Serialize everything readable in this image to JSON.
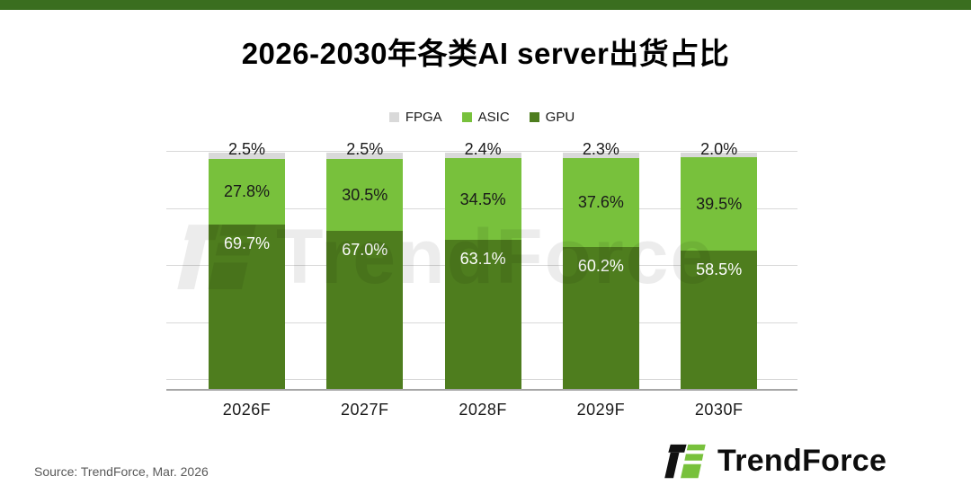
{
  "title": "2026-2030年各类AI server出货占比",
  "watermark": {
    "text": "TrendForce"
  },
  "source": "Source: TrendForce, Mar. 2026",
  "logo": {
    "text": "TrendForce"
  },
  "colors": {
    "accent_bar": "#3a6e1f",
    "gridline": "#d9d9d9",
    "axis": "#a6a6a6",
    "gpu": "#4e7d1e",
    "asic": "#78c13c",
    "fpga": "#d9d9d9"
  },
  "chart_data": {
    "type": "bar",
    "stacked": true,
    "title": "2026-2030年各类AI server出货占比",
    "categories": [
      "2026F",
      "2027F",
      "2028F",
      "2029F",
      "2030F"
    ],
    "series": [
      {
        "name": "GPU",
        "color": "#4e7d1e",
        "label_color": "#ffffff",
        "values": [
          69.7,
          67.0,
          63.1,
          60.2,
          58.5
        ]
      },
      {
        "name": "ASIC",
        "color": "#78c13c",
        "label_color": "#1a1a1a",
        "values": [
          27.8,
          30.5,
          34.5,
          37.6,
          39.5
        ]
      },
      {
        "name": "FPGA",
        "color": "#d9d9d9",
        "label_color": "#1a1a1a",
        "values": [
          2.5,
          2.5,
          2.4,
          2.3,
          2.0
        ]
      }
    ],
    "legend_order": [
      "FPGA",
      "ASIC",
      "GPU"
    ],
    "legend_position": "top",
    "value_suffix": "%",
    "ylim": [
      0,
      100
    ],
    "gridlines": true,
    "y_gridline_interval_pct": 25
  }
}
